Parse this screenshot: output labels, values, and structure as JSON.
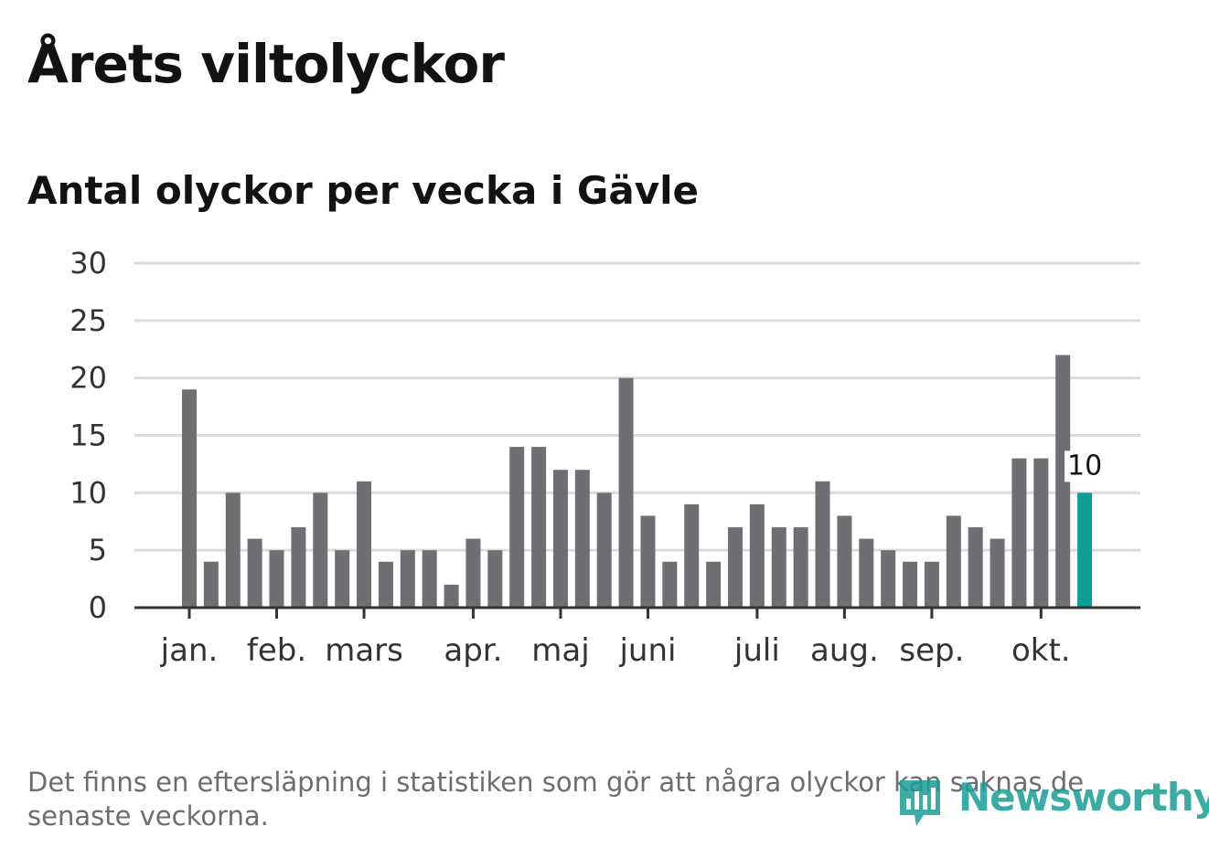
{
  "title": "Årets viltolyckor",
  "subtitle": "Antal olyckor per vecka i Gävle",
  "footnote": "Det finns en eftersläpning i statistiken som gör att några olyckor kan saknas de senaste veckorna.",
  "logo": {
    "text": "Newsworthy",
    "icon": "newsworthy-logo-icon"
  },
  "colors": {
    "bar": "#6f6e73",
    "highlight": "#0e9f96",
    "grid": "#dcdcdc",
    "axis": "#333333"
  },
  "chart_data": {
    "type": "bar",
    "title": "Antal olyckor per vecka i Gävle",
    "xlabel": "",
    "ylabel": "",
    "ylim": [
      0,
      30
    ],
    "yticks": [
      0,
      5,
      10,
      15,
      20,
      25,
      30
    ],
    "grid": true,
    "values": [
      19,
      4,
      10,
      6,
      5,
      7,
      10,
      5,
      11,
      4,
      5,
      5,
      2,
      6,
      5,
      14,
      14,
      12,
      12,
      10,
      20,
      8,
      4,
      9,
      4,
      7,
      9,
      7,
      7,
      11,
      8,
      6,
      5,
      4,
      4,
      8,
      7,
      6,
      13,
      13,
      22,
      10
    ],
    "highlight_index": 41,
    "month_labels": [
      {
        "label": "jan.",
        "index": 0
      },
      {
        "label": "feb.",
        "index": 4
      },
      {
        "label": "mars",
        "index": 8
      },
      {
        "label": "apr.",
        "index": 13
      },
      {
        "label": "maj",
        "index": 17
      },
      {
        "label": "juni",
        "index": 21
      },
      {
        "label": "juli",
        "index": 26
      },
      {
        "label": "aug.",
        "index": 30
      },
      {
        "label": "sep.",
        "index": 34
      },
      {
        "label": "okt.",
        "index": 39
      }
    ],
    "annotations": [
      {
        "index": 41,
        "text": "10"
      }
    ]
  }
}
